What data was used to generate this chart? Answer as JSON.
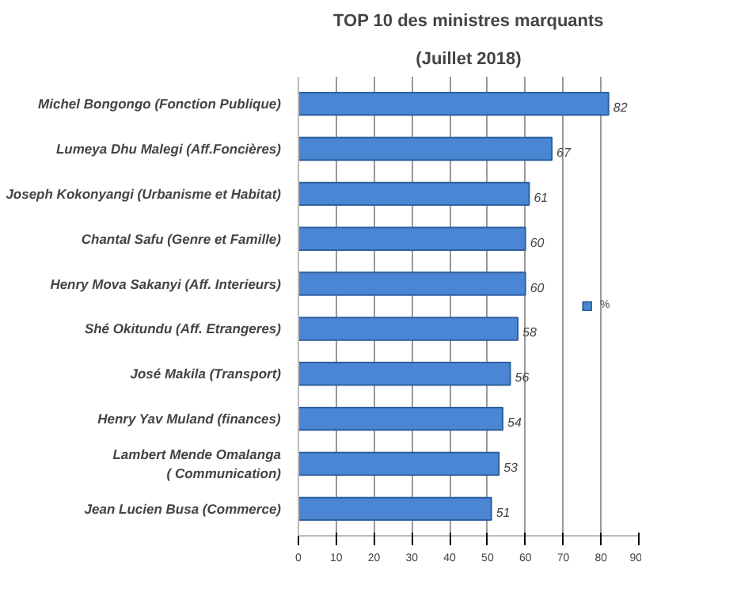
{
  "chart_data": {
    "type": "bar",
    "orientation": "horizontal",
    "title": "TOP 10 des ministres marquants",
    "subtitle": "(Juillet 2018)",
    "categories": [
      "Michel Bongongo (Fonction Publique)",
      "Lumeya Dhu Malegi (Aff.Foncières)",
      "Joseph Kokonyangi (Urbanisme et Habitat)",
      "Chantal Safu (Genre et Famille)",
      "Henry Mova Sakanyi (Aff. Interieurs)",
      "Shé Okitundu (Aff. Etrangeres)",
      "José Makila (Transport)",
      "Henry Yav Muland (finances)",
      "Lambert Mende Omalanga\n( Communication)",
      "Jean Lucien Busa (Commerce)"
    ],
    "series": [
      {
        "name": "%",
        "color": "#4a86d4",
        "values": [
          82,
          67,
          61,
          60,
          60,
          58,
          56,
          54,
          53,
          51
        ]
      }
    ],
    "xlim": [
      0,
      90
    ],
    "xticks": [
      0,
      10,
      20,
      30,
      40,
      50,
      60,
      70,
      80,
      90
    ],
    "grid": "x",
    "legend": "right",
    "data_labels": true
  }
}
